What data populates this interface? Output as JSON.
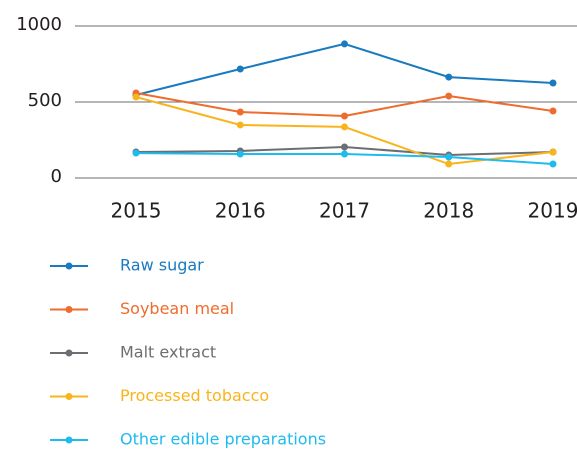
{
  "chart_data": {
    "type": "line",
    "categories": [
      "2015",
      "2016",
      "2017",
      "2018",
      "2019"
    ],
    "series": [
      {
        "name": "Raw sugar",
        "color": "#1a7abf",
        "values": [
          546,
          717,
          882,
          664,
          625
        ]
      },
      {
        "name": "Soybean meal",
        "color": "#ee6c2d",
        "values": [
          559,
          434,
          408,
          539,
          441
        ]
      },
      {
        "name": "Malt extract",
        "color": "#6d6e71",
        "values": [
          171,
          178,
          204,
          151,
          171
        ]
      },
      {
        "name": "Processed tobacco",
        "color": "#f9b41c",
        "values": [
          533,
          349,
          336,
          92,
          171
        ]
      },
      {
        "name": "Other edible preparations",
        "color": "#1ebbee",
        "values": [
          164,
          158,
          158,
          138,
          92
        ]
      }
    ],
    "ylim": [
      0,
      1000
    ],
    "yticks": [
      0,
      500,
      1000
    ],
    "grid": true,
    "legend": "bottom"
  }
}
